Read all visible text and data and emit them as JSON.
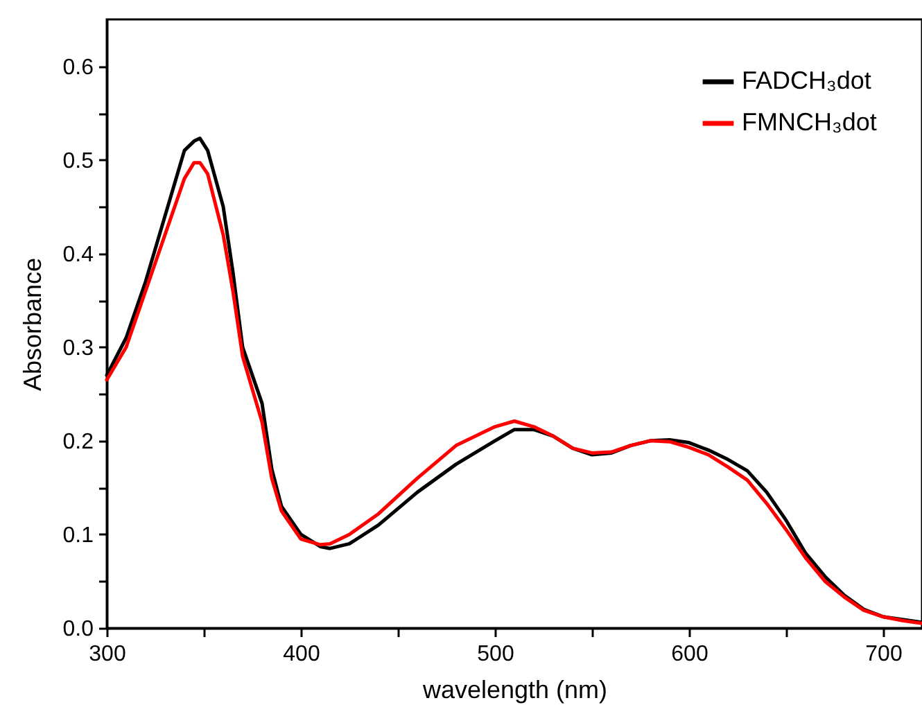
{
  "chart_data": {
    "type": "line",
    "xlabel": "wavelength (nm)",
    "ylabel": "Absorbance",
    "xlim": [
      300,
      720
    ],
    "ylim": [
      0,
      0.65
    ],
    "xticks": [
      300,
      {
        "value": 350,
        "label": null
      },
      400,
      {
        "value": 450,
        "label": null
      },
      500,
      {
        "value": 550,
        "label": null
      },
      600,
      {
        "value": 650,
        "label": null
      },
      700
    ],
    "yticks": [
      {
        "value": 0,
        "label": "0.0"
      },
      {
        "value": 0.05,
        "label": null
      },
      0.1,
      {
        "value": 0.15,
        "label": null
      },
      0.2,
      {
        "value": 0.25,
        "label": null
      },
      0.3,
      {
        "value": 0.35,
        "label": null
      },
      0.4,
      {
        "value": 0.45,
        "label": null
      },
      0.5,
      {
        "value": 0.55,
        "label": null
      },
      0.6
    ],
    "grid": false,
    "legend": "top right",
    "marker": "none",
    "line_style": "solid",
    "x": [
      300,
      310,
      320,
      330,
      340,
      345,
      348,
      352,
      360,
      365,
      370,
      380,
      385,
      390,
      400,
      410,
      415,
      425,
      440,
      460,
      480,
      500,
      510,
      520,
      530,
      540,
      550,
      560,
      570,
      580,
      590,
      600,
      610,
      620,
      630,
      640,
      650,
      660,
      670,
      680,
      690,
      700,
      710,
      720
    ],
    "series": [
      {
        "name": "FADCH₃dot",
        "color": "#000000",
        "values": [
          0.27,
          0.31,
          0.37,
          0.44,
          0.51,
          0.52,
          0.523,
          0.51,
          0.45,
          0.38,
          0.3,
          0.24,
          0.17,
          0.13,
          0.1,
          0.087,
          0.085,
          0.09,
          0.11,
          0.145,
          0.175,
          0.2,
          0.212,
          0.212,
          0.205,
          0.192,
          0.185,
          0.187,
          0.195,
          0.2,
          0.201,
          0.198,
          0.19,
          0.18,
          0.168,
          0.145,
          0.115,
          0.08,
          0.055,
          0.035,
          0.02,
          0.012,
          0.009,
          0.006
        ]
      },
      {
        "name": "FMNCH₃dot",
        "color": "#ff0000",
        "values": [
          0.265,
          0.3,
          0.36,
          0.42,
          0.48,
          0.497,
          0.497,
          0.485,
          0.42,
          0.36,
          0.29,
          0.22,
          0.16,
          0.125,
          0.095,
          0.089,
          0.09,
          0.1,
          0.122,
          0.16,
          0.195,
          0.215,
          0.221,
          0.215,
          0.205,
          0.192,
          0.187,
          0.188,
          0.195,
          0.2,
          0.199,
          0.193,
          0.185,
          0.172,
          0.158,
          0.133,
          0.105,
          0.075,
          0.05,
          0.033,
          0.019,
          0.012,
          0.008,
          0.005
        ]
      }
    ]
  }
}
